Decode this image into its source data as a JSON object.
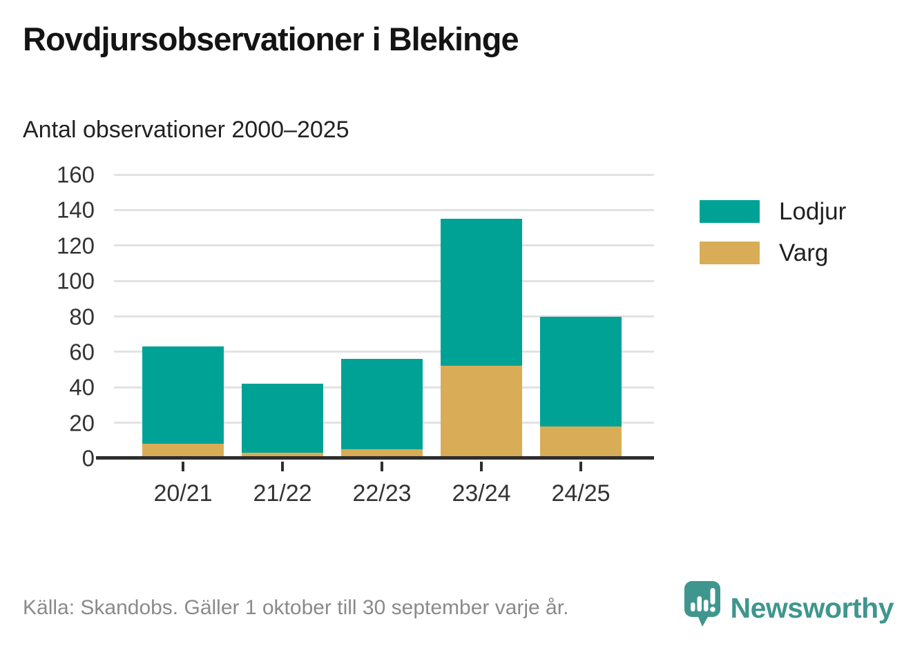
{
  "header": {
    "title": "Rovdjursobservationer i Blekinge",
    "subtitle": "Antal observationer 2000–2025"
  },
  "chart_data": {
    "type": "bar",
    "stacked": true,
    "categories": [
      "20/21",
      "21/22",
      "22/23",
      "23/24",
      "24/25"
    ],
    "series": [
      {
        "name": "Varg",
        "color": "#d9ad57",
        "values": [
          8,
          3,
          5,
          52,
          18
        ]
      },
      {
        "name": "Lodjur",
        "color": "#00a296",
        "values": [
          55,
          39,
          51,
          83,
          62
        ]
      }
    ],
    "totals": [
      63,
      42,
      56,
      135,
      80
    ],
    "legend": [
      {
        "label": "Lodjur",
        "color": "#00a296"
      },
      {
        "label": "Varg",
        "color": "#d9ad57"
      }
    ],
    "legend_position": "right",
    "ylim": [
      0,
      160
    ],
    "yticks": [
      0,
      20,
      40,
      60,
      80,
      100,
      120,
      140,
      160
    ],
    "grid": "horizontal",
    "grid_color": "#e2e2e2",
    "axis_color": "#2e2e2e"
  },
  "footer": {
    "source": "Källa: Skandobs. Gäller 1 oktober till 30 september varje år.",
    "brand": "Newsworthy",
    "brand_color": "#3f968e"
  }
}
